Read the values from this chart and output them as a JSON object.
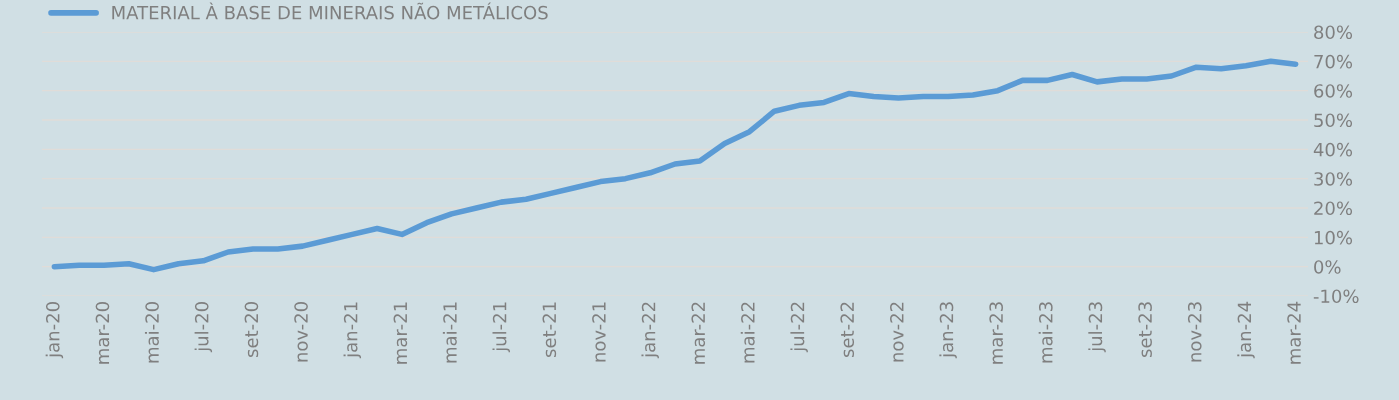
{
  "chart_data": {
    "type": "line",
    "categories": [
      "jan-20",
      null,
      "mar-20",
      null,
      "mai-20",
      null,
      "jul-20",
      null,
      "set-20",
      null,
      "nov-20",
      null,
      "jan-21",
      null,
      "mar-21",
      null,
      "mai-21",
      null,
      "jul-21",
      null,
      "set-21",
      null,
      "nov-21",
      null,
      "jan-22",
      null,
      "mar-22",
      null,
      "mai-22",
      null,
      "jul-22",
      null,
      "set-22",
      null,
      "nov-22",
      null,
      "jan-23",
      null,
      "mar-23",
      null,
      "mai-23",
      null,
      "jul-23",
      null,
      "set-23",
      null,
      "nov-23",
      null,
      "jan-24",
      null,
      "mar-24"
    ],
    "series": [
      {
        "name": "MATERIAL À BASE DE MINERAIS NÃO METÁLICOS",
        "color": "#5b9bd5",
        "values": [
          0,
          0.5,
          0.5,
          1,
          -1,
          1,
          2,
          5,
          6,
          6,
          7,
          9,
          11,
          13,
          11,
          15,
          18,
          20,
          22,
          23,
          25,
          27,
          29,
          30,
          32,
          35,
          36,
          42,
          46,
          53,
          55,
          56,
          59,
          58,
          57.5,
          58,
          58,
          58.5,
          60,
          63.5,
          63.5,
          65.5,
          63,
          64,
          64,
          65,
          68,
          67.5,
          68.5,
          70,
          69
        ]
      }
    ],
    "ylim": [
      -10,
      80
    ],
    "yticks": [
      {
        "value": -10,
        "label": "-10%"
      },
      {
        "value": 0,
        "label": "0%"
      },
      {
        "value": 10,
        "label": "10%"
      },
      {
        "value": 20,
        "label": "20%"
      },
      {
        "value": 30,
        "label": "30%"
      },
      {
        "value": 40,
        "label": "40%"
      },
      {
        "value": 50,
        "label": "50%"
      },
      {
        "value": 60,
        "label": "60%"
      },
      {
        "value": 70,
        "label": "70%"
      },
      {
        "value": 80,
        "label": "80%"
      }
    ],
    "grid": "y",
    "legend": "top left",
    "marker": "none",
    "line_style": "solid"
  }
}
